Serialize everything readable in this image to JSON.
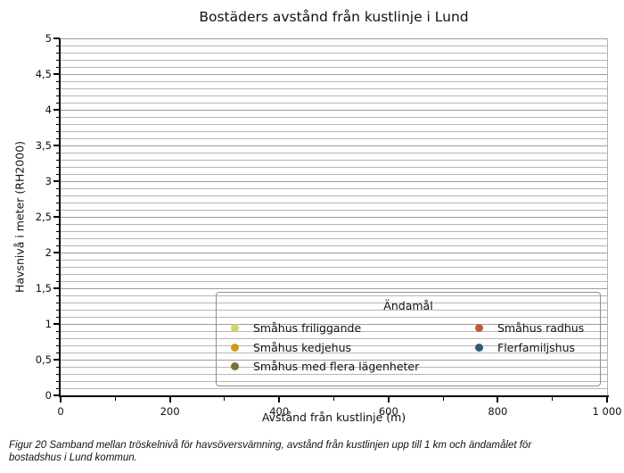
{
  "figure": {
    "title": "Bostäders avstånd från kustlinje i Lund",
    "caption": "Figur 20 Samband mellan tröskelnivå för havsöversvämning, avstånd från kustlinjen upp till 1 km och ändamålet för bostadshus i Lund kommun."
  },
  "chart_data": {
    "type": "scatter",
    "title": "Bostäders avstånd från kustlinje i Lund",
    "xlabel": "Avstånd från kustlinje (m)",
    "ylabel": "Havsnivå i meter (RH2000)",
    "xlim": [
      0,
      1000
    ],
    "ylim": [
      0,
      5
    ],
    "x_tick_values": [
      0,
      200,
      400,
      600,
      800,
      1000
    ],
    "x_tick_labels": [
      "0",
      "200",
      "400",
      "600",
      "800",
      "1 000"
    ],
    "x_minor_step": 100,
    "y_tick_values": [
      0,
      0.5,
      1,
      1.5,
      2,
      2.5,
      3,
      3.5,
      4,
      4.5,
      5
    ],
    "y_tick_labels": [
      "0",
      "0,5",
      "1",
      "1,5",
      "2",
      "2,5",
      "3",
      "3,5",
      "4",
      "4,5",
      "5"
    ],
    "y_minor_step": 0.1,
    "grid": {
      "horizontal": true,
      "vertical": false,
      "minor_color": "#b6b6b6",
      "major_color": "#9d9d9d"
    },
    "legend_title": "Ändamål",
    "legend_position": "lower-right-inside",
    "series": [
      {
        "name": "Småhus friliggande",
        "color": "#d2d465",
        "points": []
      },
      {
        "name": "Småhus kedjehus",
        "color": "#d09b12",
        "points": []
      },
      {
        "name": "Småhus med flera lägenheter",
        "color": "#7d7036",
        "points": []
      },
      {
        "name": "Småhus radhus",
        "color": "#c05c2e",
        "points": []
      },
      {
        "name": "Flerfamiljshus",
        "color": "#2f5b75",
        "points": []
      }
    ]
  },
  "legend": {
    "title": "Ändamål",
    "columns": [
      {
        "items": [
          {
            "label": "Småhus friliggande",
            "color": "#d2d465"
          },
          {
            "label": "Småhus kedjehus",
            "color": "#d09b12"
          },
          {
            "label": "Småhus med flera lägenheter",
            "color": "#7d7036"
          }
        ]
      },
      {
        "items": [
          {
            "label": "Småhus radhus",
            "color": "#c05c2e"
          },
          {
            "label": "Flerfamiljshus",
            "color": "#2f5b75"
          }
        ]
      }
    ]
  }
}
